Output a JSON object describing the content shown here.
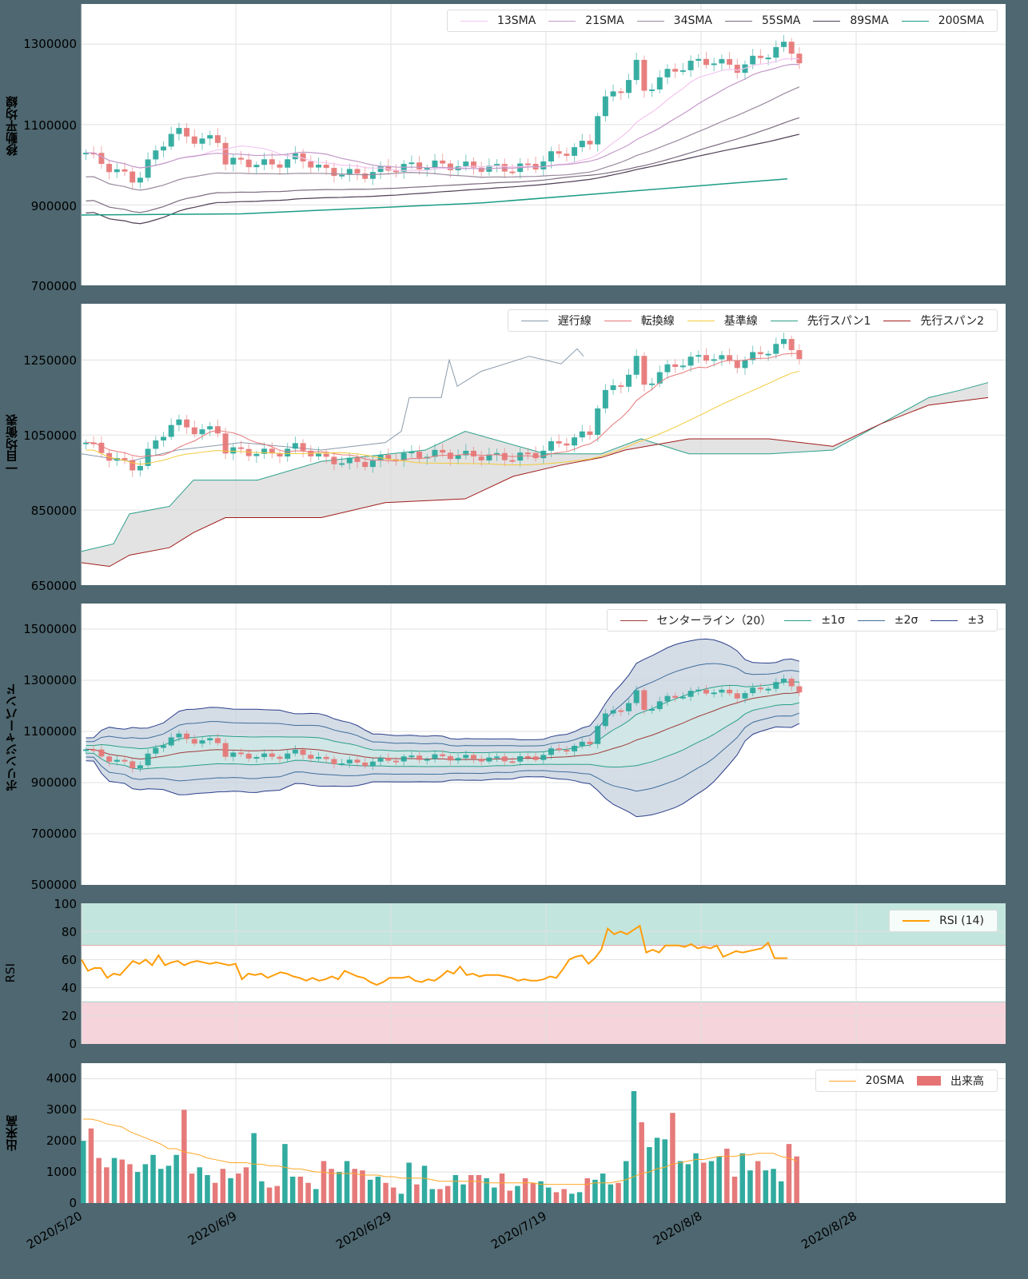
{
  "chart_data": [
    {
      "type": "candlestick-line",
      "title": "",
      "ylabel": "移動平均線",
      "ylim": [
        700000,
        1400000
      ],
      "yticks": [
        "1300000",
        "1100000",
        "900000",
        "700000"
      ],
      "legend": [
        "13SMA",
        "21SMA",
        "34SMA",
        "55SMA",
        "89SMA",
        "200SMA"
      ],
      "legend_colors": [
        "#f4c6f0",
        "#c49ac8",
        "#9a8a9e",
        "#7c6c80",
        "#4e3f55",
        "#1b9c85"
      ],
      "series_endpoints": {
        "13SMA": [
          990000,
          1255000
        ],
        "21SMA": [
          990000,
          1240000
        ],
        "34SMA": [
          920000,
          1165000
        ],
        "55SMA": [
          850000,
          1100000
        ],
        "89SMA": [
          840000,
          1070000
        ],
        "200SMA": [
          875000,
          965000
        ]
      },
      "grid": true
    },
    {
      "type": "ichimoku",
      "ylabel": "一目均衡表",
      "ylim": [
        650000,
        1400000
      ],
      "yticks": [
        "1250000",
        "1050000",
        "850000",
        "650000"
      ],
      "legend": [
        "遅行線",
        "転換線",
        "基準線",
        "先行スパン1",
        "先行スパン2"
      ],
      "legend_colors": [
        "#8a9aaa",
        "#e8787a",
        "#f2cb3a",
        "#2aa08a",
        "#a01c1c"
      ],
      "grid": true
    },
    {
      "type": "bollinger",
      "ylabel": "ボリンジャーバンド",
      "ylim": [
        500000,
        1600000
      ],
      "yticks": [
        "1500000",
        "1300000",
        "1100000",
        "900000",
        "700000",
        "500000"
      ],
      "legend": [
        "センターライン（20）",
        "±1σ",
        "±2σ",
        "±3"
      ],
      "legend_colors": [
        "#a03c3c",
        "#2aa08a",
        "#3e6f9a",
        "#2a3f8a"
      ],
      "grid": true
    },
    {
      "type": "line",
      "ylabel": "RSI",
      "ylim": [
        0,
        100
      ],
      "yticks": [
        "100",
        "80",
        "60",
        "40",
        "20",
        "0"
      ],
      "legend": [
        "RSI (14)"
      ],
      "legend_colors": [
        "#ff9d0a"
      ],
      "overbought_zone": [
        70,
        100
      ],
      "oversold_zone": [
        0,
        30
      ],
      "values": [
        60,
        52,
        54,
        54,
        47,
        50,
        49,
        54,
        59,
        57,
        60,
        56,
        63,
        56,
        58,
        59,
        56,
        58,
        59,
        58,
        57,
        58,
        57,
        56,
        57,
        46,
        50,
        49,
        50,
        47,
        49,
        51,
        50,
        48,
        47,
        45,
        47,
        45,
        46,
        48,
        46,
        52,
        50,
        48,
        47,
        44,
        42,
        44,
        47,
        47,
        47,
        48,
        45,
        44,
        46,
        45,
        48,
        52,
        50,
        55,
        49,
        50,
        48,
        49,
        49,
        49,
        48,
        47,
        45,
        46,
        45,
        45,
        46,
        48,
        47,
        53,
        60,
        62,
        63,
        57,
        61,
        67,
        82,
        78,
        80,
        78,
        81,
        84,
        65,
        67,
        65,
        70,
        70,
        70,
        69,
        71,
        68,
        69,
        68,
        70,
        62,
        64,
        66,
        65,
        66,
        67,
        68,
        72,
        61,
        61,
        61
      ]
    },
    {
      "type": "bar",
      "ylabel": "出来高",
      "ylim": [
        0,
        4500
      ],
      "yticks": [
        "4000",
        "3000",
        "2000",
        "1000",
        "0"
      ],
      "legend": [
        "20SMA",
        "出来高"
      ],
      "legend_colors": [
        "#ffa726",
        "#e57373"
      ],
      "values": [
        2000,
        2400,
        1450,
        1150,
        1450,
        1400,
        1250,
        1000,
        1250,
        1550,
        1100,
        1200,
        1550,
        3000,
        950,
        1150,
        900,
        650,
        1100,
        800,
        950,
        1150,
        2250,
        700,
        500,
        550,
        1900,
        850,
        850,
        650,
        450,
        1350,
        1100,
        1000,
        1350,
        1100,
        1050,
        750,
        850,
        650,
        500,
        300,
        1300,
        600,
        1200,
        450,
        450,
        550,
        900,
        600,
        900,
        900,
        800,
        500,
        950,
        400,
        550,
        800,
        650,
        700,
        500,
        350,
        450,
        300,
        350,
        800,
        750,
        950,
        600,
        650,
        1350,
        3600,
        2600,
        1800,
        2100,
        2050,
        2900,
        1350,
        1250,
        1600,
        1300,
        1350,
        1500,
        1750,
        850,
        1600,
        1050,
        1350,
        1050,
        1100,
        700,
        1900,
        1500
      ],
      "sma20": [
        2700,
        2700,
        2650,
        2550,
        2500,
        2450,
        2300,
        2200,
        2100,
        2000,
        1900,
        1750,
        1750,
        1650,
        1600,
        1550,
        1450,
        1400,
        1350,
        1300,
        1300,
        1300,
        1250,
        1250,
        1200,
        1200,
        1150,
        1100,
        1100,
        1050,
        1000,
        1000,
        950,
        950,
        950,
        950,
        900,
        900,
        900,
        850,
        850,
        800,
        800,
        800,
        800,
        750,
        700,
        700,
        700,
        700,
        700,
        700,
        650,
        650,
        650,
        650,
        650,
        650,
        650,
        600,
        600,
        600,
        600,
        600,
        600,
        600,
        650,
        650,
        650,
        700,
        750,
        850,
        950,
        1000,
        1100,
        1150,
        1250,
        1300,
        1350,
        1400,
        1400,
        1450,
        1500,
        1500,
        1500,
        1550,
        1550,
        1600,
        1600,
        1600,
        1500,
        1450,
        1350
      ]
    }
  ],
  "xaxis": {
    "ticks": [
      "2020/5/20",
      "2020/6/9",
      "2020/6/29",
      "2020/7/19",
      "2020/8/8",
      "2020/8/28"
    ]
  },
  "panels": {
    "sma": {
      "ylabel": "移動平均線",
      "yticks": [
        "1300000",
        "1100000",
        "900000",
        "700000"
      ],
      "legend": [
        "13SMA",
        "21SMA",
        "34SMA",
        "55SMA",
        "89SMA",
        "200SMA"
      ]
    },
    "ichimoku": {
      "ylabel": "一目均衡表",
      "yticks": [
        "1250000",
        "1050000",
        "850000",
        "650000"
      ],
      "legend": [
        "遅行線",
        "転換線",
        "基準線",
        "先行スパン1",
        "先行スパン2"
      ]
    },
    "bollinger": {
      "ylabel": "ボリンジャーバンド",
      "yticks": [
        "1500000",
        "1300000",
        "1100000",
        "900000",
        "700000",
        "500000"
      ],
      "legend": [
        "センターライン（20）",
        "±1σ",
        "±2σ",
        "±3"
      ]
    },
    "rsi": {
      "ylabel": "RSI",
      "yticks": [
        "100",
        "80",
        "60",
        "40",
        "20",
        "0"
      ],
      "legend": [
        "RSI (14)"
      ]
    },
    "volume": {
      "ylabel": "出来高",
      "yticks": [
        "4000",
        "3000",
        "2000",
        "1000",
        "0"
      ],
      "legend": [
        "20SMA",
        "出来高"
      ]
    }
  },
  "colors": {
    "up": "#26a69a",
    "down": "#e57373",
    "background": "#4e6770",
    "cloud": "#d9d9d9",
    "rsi_line": "#ff9d0a",
    "overbought": "#a8dccf",
    "oversold": "#f2c2cc"
  }
}
